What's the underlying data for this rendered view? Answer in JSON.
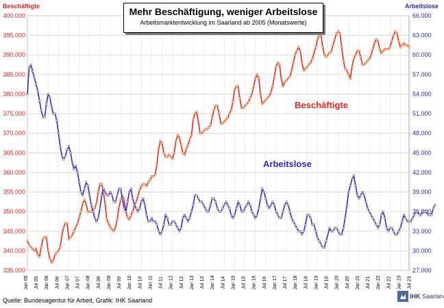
{
  "title": "Mehr Beschäftigung, weniger Arbeitslose",
  "subtitle": "Arbeitsmarktentwicklung im Saarland ab 2005 (Monatswerte)",
  "source": "Quelle: Bundesagentur für Arbeit, Grafik: IHK Saarland",
  "logo": {
    "ihk": "IHK",
    "region": "Saarland"
  },
  "colors": {
    "employed": "#e8261b",
    "unemployed": "#2a2ad4",
    "marker_fill": "#f5d98a"
  },
  "chart_data": {
    "type": "line",
    "title": "Mehr Beschäftigung, weniger Arbeitslose",
    "subtitle": "Arbeitsmarktentwicklung im Saarland ab 2005 (Monatswerte)",
    "left_axis": {
      "label": "Beschäftigte",
      "ylim": [
        335000,
        400000
      ],
      "ticks": [
        "400.000",
        "395.000",
        "390.000",
        "385.000",
        "380.000",
        "375.000",
        "370.000",
        "365.000",
        "360.000",
        "355.000",
        "350.000",
        "345.000",
        "340.000",
        "335.000"
      ]
    },
    "right_axis": {
      "label": "Arbeitslose",
      "ylim": [
        27000,
        66000
      ],
      "ticks": [
        "66.000",
        "63.000",
        "60.000",
        "57.000",
        "54.000",
        "51.000",
        "48.000",
        "45.000",
        "42.000",
        "39.000",
        "36.000",
        "33.000",
        "30.000",
        "27.000"
      ]
    },
    "x_ticks": [
      "Jan 05",
      "Jul 05",
      "Jan 06",
      "Jul 06",
      "Jan 07",
      "Jul 07",
      "Jan 08",
      "Jul 08",
      "Jan 09",
      "Jul 09",
      "Jan 10",
      "Jul 10",
      "Jan 11",
      "Jul 11",
      "Jan 12",
      "Jul 12",
      "Jan 13",
      "Jul 13",
      "Jan 14",
      "Jul 14",
      "Jan 15",
      "Jul 15",
      "Jan 16",
      "Jul 16",
      "Jan 17",
      "Jul 17",
      "Jan 18",
      "Jul 18",
      "Jan 19",
      "Jul 19",
      "Jan 20",
      "Jul 20",
      "Jan 21",
      "Jul 21",
      "Jan 22",
      "Jul 22",
      "Jan 23",
      "Jul 23"
    ],
    "grid": true,
    "series": [
      {
        "name": "Beschäftigte",
        "axis": "left",
        "color": "#e8261b",
        "values": [
          342500,
          341500,
          341000,
          340500,
          340000,
          340500,
          339000,
          338500,
          341000,
          343000,
          343500,
          343500,
          340000,
          338000,
          337000,
          337500,
          339000,
          339500,
          340000,
          341000,
          344000,
          346000,
          347000,
          347000,
          343000,
          343500,
          344000,
          345000,
          346000,
          347000,
          348500,
          350000,
          352000,
          353000,
          352000,
          350000,
          350000,
          350000,
          350500,
          351000,
          352000,
          355000,
          357000,
          357000,
          355000,
          352000,
          348000,
          347000,
          346000,
          345500,
          345000,
          346000,
          348000,
          351000,
          353000,
          354000,
          353000,
          350000,
          348500,
          348000,
          349000,
          350000,
          351500,
          352500,
          354000,
          355500,
          356500,
          357000,
          357000,
          356500,
          357500,
          358000,
          359000,
          359000,
          359500,
          362000,
          366000,
          368000,
          367500,
          365000,
          364000,
          364000,
          364500,
          364000,
          363500,
          365000,
          368000,
          369500,
          369000,
          367000,
          365000,
          364500,
          366000,
          367000,
          368500,
          369500,
          373500,
          375000,
          375500,
          373000,
          370000,
          370000,
          370500,
          371000,
          371000,
          371500,
          372000,
          374000,
          376000,
          377000,
          377000,
          375000,
          372500,
          372500,
          373000,
          373500,
          374000,
          375000,
          376000,
          378000,
          381000,
          382000,
          382000,
          379000,
          376500,
          376500,
          377000,
          377500,
          378000,
          379000,
          380000,
          382000,
          384000,
          385000,
          384000,
          380000,
          377500,
          378000,
          378500,
          379000,
          379500,
          380500,
          382000,
          384500,
          387000,
          388000,
          387500,
          384000,
          382000,
          383000,
          383500,
          384000,
          384500,
          386000,
          388000,
          390000,
          391000,
          392000,
          391000,
          388000,
          386000,
          386500,
          387000,
          387500,
          388000,
          389000,
          390500,
          392000,
          394000,
          395000,
          395000,
          392000,
          390000,
          389500,
          390000,
          390500,
          391000,
          392500,
          394000,
          395500,
          396000,
          395500,
          392000,
          388500,
          386500,
          386000,
          385000,
          384000,
          387000,
          389000,
          390000,
          391000,
          391000,
          389500,
          387500,
          387500,
          388000,
          388500,
          389000,
          390000,
          391500,
          393000,
          394000,
          393500,
          391500,
          390500,
          391000,
          391500,
          391500,
          391500,
          392000,
          393500,
          395000,
          396000,
          395500,
          393500,
          392000,
          392500,
          393000,
          392500,
          392500,
          392000
        ]
      },
      {
        "name": "Arbeitslose",
        "axis": "right",
        "color": "#2a2ad4",
        "values": [
          54000,
          58000,
          58500,
          57500,
          56500,
          55500,
          54500,
          53000,
          51500,
          50500,
          50500,
          52500,
          54000,
          53500,
          52000,
          51000,
          51000,
          50000,
          48000,
          46000,
          44500,
          44000,
          44500,
          45500,
          46000,
          45000,
          43500,
          42500,
          43000,
          42000,
          40500,
          39000,
          38500,
          39500,
          40500,
          40000,
          38500,
          37000,
          36000,
          35000,
          34500,
          35000,
          36500,
          38500,
          39500,
          39000,
          38500,
          38500,
          39000,
          38500,
          37500,
          37500,
          38500,
          39500,
          39500,
          38000,
          36500,
          36000,
          37500,
          39000,
          39500,
          38000,
          37000,
          36500,
          36000,
          36500,
          37500,
          38000,
          37000,
          35500,
          34500,
          34500,
          35000,
          34500,
          34500,
          34000,
          33000,
          32500,
          33000,
          34000,
          35500,
          35000,
          34000,
          34000,
          34500,
          34500,
          34000,
          33500,
          33000,
          33500,
          35000,
          35500,
          35000,
          34500,
          35000,
          36000,
          37000,
          38500,
          38500,
          38000,
          37500,
          37500,
          37000,
          36500,
          36000,
          36000,
          37000,
          38000,
          38000,
          37500,
          36500,
          36000,
          36000,
          36500,
          37000,
          37500,
          37000,
          36500,
          35500,
          35000,
          35500,
          36500,
          37500,
          37000,
          36000,
          36000,
          36500,
          37000,
          37500,
          37000,
          36000,
          35500,
          35000,
          35500,
          36500,
          38000,
          39500,
          39000,
          38000,
          37000,
          36500,
          37000,
          37500,
          37000,
          36000,
          35500,
          35000,
          35000,
          36000,
          37000,
          37500,
          37000,
          36000,
          35000,
          34500,
          34000,
          33500,
          33000,
          33000,
          32500,
          33000,
          34000,
          35500,
          35500,
          35000,
          34000,
          34000,
          33000,
          32000,
          31500,
          31000,
          30500,
          30500,
          31500,
          32500,
          33500,
          33000,
          33000,
          33500,
          33500,
          33000,
          32500,
          32500,
          33500,
          35000,
          37000,
          39000,
          40000,
          41000,
          41500,
          40000,
          38500,
          38000,
          38500,
          39000,
          38500,
          37500,
          36500,
          36000,
          35500,
          35000,
          34500,
          34000,
          33500,
          34000,
          35500,
          36000,
          35000,
          33500,
          33000,
          33500,
          33500,
          33000,
          32500,
          32500,
          33000,
          33500,
          34500,
          35500,
          35000,
          34500,
          34500,
          34500,
          35000,
          35500,
          36000,
          36000,
          35500,
          35500,
          36000,
          36000,
          36000,
          35500,
          35500,
          35500,
          36500,
          37000
        ]
      }
    ]
  },
  "labels": {
    "employed": "Beschäftigte",
    "unemployed": "Arbeitslose"
  }
}
